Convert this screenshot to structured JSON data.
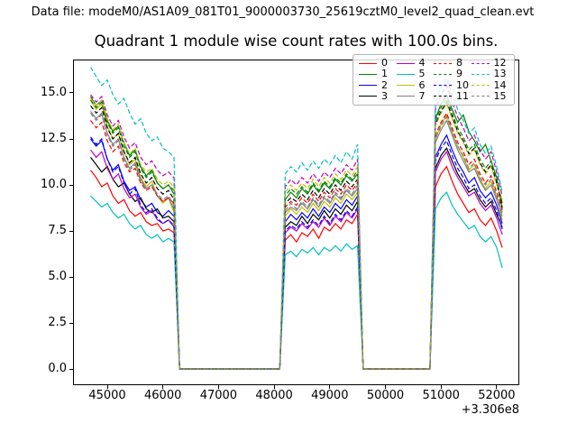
{
  "header": {
    "text": "Data file: modeM0/AS1A09_081T01_9000003730_25619cztM0_level2_quad_clean.evt"
  },
  "chart_data": {
    "type": "line",
    "title": "Quadrant 1 module wise count rates with 100.0s bins.",
    "xlabel": "",
    "ylabel": "",
    "bin_size_s": 100.0,
    "grid": false,
    "legend_position": "upper right",
    "axes": {
      "xlim": [
        44384,
        52407
      ],
      "ylim": [
        -0.88,
        16.81
      ],
      "x_offset_text": "+3.306e8",
      "x_ticks": {
        "values": [
          45000,
          46000,
          47000,
          48000,
          49000,
          50000,
          51000,
          52000
        ],
        "labels": [
          "45000",
          "46000",
          "47000",
          "48000",
          "49000",
          "50000",
          "51000",
          "52000"
        ]
      },
      "y_ticks": {
        "values": [
          0,
          2.5,
          5,
          7.5,
          10,
          12.5,
          15
        ],
        "labels": [
          "0.0",
          "2.5",
          "5.0",
          "7.5",
          "10.0",
          "12.5",
          "15.0"
        ]
      }
    },
    "x_seg1": [
      44700,
      44800,
      44900,
      45000,
      45100,
      45200,
      45300,
      45400,
      45500,
      45600,
      45700,
      45800,
      45900,
      46000,
      46100,
      46200
    ],
    "x_seg2": [
      48200,
      48300,
      48400,
      48500,
      48600,
      48700,
      48800,
      48900,
      49000,
      49100,
      49200,
      49300,
      49400,
      49500
    ],
    "x_seg3": [
      50900,
      51000,
      51100,
      51200,
      51300,
      51400,
      51500,
      51600,
      51700,
      51800,
      51900,
      52000,
      52100
    ],
    "gaps": [
      [
        46300,
        48100
      ],
      [
        49600,
        50800
      ]
    ],
    "gap_value": 0,
    "series": [
      {
        "name": "0",
        "color": "#ff0000",
        "linestyle": "solid",
        "seg1": [
          10.8,
          10.4,
          9.9,
          10.1,
          9.4,
          9.0,
          9.2,
          8.6,
          8.3,
          8.5,
          8.0,
          7.8,
          7.9,
          7.5,
          7.6,
          7.4
        ],
        "seg2": [
          7.0,
          7.3,
          6.9,
          7.4,
          7.2,
          7.6,
          7.1,
          7.7,
          7.5,
          7.9,
          7.6,
          8.1,
          7.9,
          8.4
        ],
        "seg3": [
          9.9,
          10.6,
          11.0,
          10.2,
          9.5,
          9.0,
          8.5,
          8.7,
          8.1,
          7.8,
          8.2,
          7.5,
          6.6
        ]
      },
      {
        "name": "1",
        "color": "#008000",
        "linestyle": "solid",
        "seg1": [
          14.8,
          14.3,
          14.6,
          13.5,
          12.9,
          13.2,
          12.3,
          11.6,
          11.9,
          11.0,
          10.5,
          10.8,
          10.1,
          9.8,
          10.0,
          9.5
        ],
        "seg2": [
          9.2,
          9.6,
          9.3,
          9.8,
          9.5,
          10.0,
          9.6,
          10.1,
          9.8,
          10.3,
          10.0,
          10.5,
          10.2,
          10.6
        ],
        "seg3": [
          13.6,
          14.4,
          14.9,
          14.1,
          13.4,
          13.8,
          12.9,
          12.4,
          11.8,
          12.2,
          11.3,
          10.4,
          8.7
        ]
      },
      {
        "name": "2",
        "color": "#0000ff",
        "linestyle": "solid",
        "seg1": [
          12.5,
          12.1,
          12.4,
          11.4,
          10.8,
          11.1,
          10.2,
          9.7,
          9.9,
          9.2,
          8.8,
          9.0,
          8.5,
          8.3,
          8.6,
          8.3
        ],
        "seg2": [
          8.0,
          8.4,
          8.1,
          8.5,
          8.2,
          8.7,
          8.3,
          8.8,
          8.5,
          9.0,
          8.7,
          9.2,
          8.9,
          9.4
        ],
        "seg3": [
          11.5,
          12.2,
          12.7,
          11.9,
          11.2,
          10.7,
          10.1,
          10.4,
          9.7,
          9.3,
          9.6,
          8.9,
          7.9
        ]
      },
      {
        "name": "3",
        "color": "#000000",
        "linestyle": "solid",
        "seg1": [
          11.5,
          11.1,
          10.7,
          11.0,
          10.3,
          9.9,
          10.1,
          9.5,
          9.1,
          9.3,
          8.7,
          8.5,
          8.7,
          8.2,
          8.3,
          8.0
        ],
        "seg2": [
          7.7,
          8.0,
          7.8,
          8.3,
          7.9,
          8.4,
          8.1,
          8.6,
          8.2,
          8.7,
          8.4,
          8.9,
          8.6,
          9.1
        ],
        "seg3": [
          10.9,
          11.6,
          12.0,
          11.3,
          10.6,
          10.1,
          9.6,
          9.8,
          9.2,
          8.8,
          9.1,
          8.4,
          7.7
        ]
      },
      {
        "name": "4",
        "color": "#bf00bf",
        "linestyle": "solid",
        "seg1": [
          11.9,
          11.5,
          11.8,
          10.9,
          10.3,
          10.6,
          9.8,
          9.3,
          9.5,
          8.8,
          8.4,
          8.6,
          8.1,
          7.9,
          8.1,
          7.7
        ],
        "seg2": [
          7.4,
          7.7,
          7.5,
          7.9,
          7.6,
          8.0,
          7.7,
          8.2,
          7.8,
          8.3,
          8.0,
          8.5,
          8.2,
          8.7
        ],
        "seg3": [
          10.7,
          11.4,
          11.8,
          11.0,
          10.4,
          9.9,
          9.4,
          9.6,
          9.0,
          8.6,
          8.9,
          8.2,
          7.3
        ]
      },
      {
        "name": "5",
        "color": "#00bfbf",
        "linestyle": "solid",
        "seg1": [
          9.4,
          9.1,
          8.8,
          9.0,
          8.5,
          8.2,
          8.4,
          7.9,
          7.6,
          7.8,
          7.3,
          7.1,
          7.3,
          6.9,
          7.1,
          6.9
        ],
        "seg2": [
          6.2,
          6.4,
          6.1,
          6.5,
          6.3,
          6.6,
          6.2,
          6.6,
          6.4,
          6.7,
          6.4,
          6.8,
          6.5,
          6.7
        ],
        "seg3": [
          8.7,
          9.3,
          9.6,
          8.9,
          8.4,
          8.0,
          7.6,
          7.8,
          7.2,
          6.9,
          7.2,
          6.6,
          5.5
        ]
      },
      {
        "name": "6",
        "color": "#bfbf00",
        "linestyle": "solid",
        "seg1": [
          14.6,
          14.1,
          14.4,
          13.2,
          12.5,
          12.8,
          11.8,
          11.1,
          11.4,
          10.4,
          9.9,
          10.2,
          9.4,
          9.0,
          9.3,
          8.5
        ],
        "seg2": [
          8.3,
          8.7,
          8.4,
          8.8,
          8.5,
          9.0,
          8.6,
          9.1,
          8.8,
          9.3,
          9.0,
          9.5,
          9.2,
          9.6
        ],
        "seg3": [
          12.5,
          13.3,
          13.8,
          12.9,
          12.1,
          11.5,
          10.8,
          11.1,
          10.3,
          9.8,
          10.2,
          9.3,
          8.1
        ]
      },
      {
        "name": "7",
        "color": "#7f7f7f",
        "linestyle": "solid",
        "seg1": [
          14.0,
          13.6,
          13.9,
          12.8,
          12.2,
          12.5,
          11.5,
          10.9,
          11.2,
          10.3,
          9.8,
          10.0,
          9.4,
          9.1,
          9.3,
          8.7
        ],
        "seg2": [
          8.5,
          8.8,
          8.6,
          9.0,
          8.7,
          9.2,
          8.8,
          9.3,
          9.0,
          9.5,
          9.2,
          9.7,
          9.4,
          9.8
        ],
        "seg3": [
          12.3,
          13.0,
          13.5,
          12.7,
          11.9,
          11.3,
          10.7,
          10.9,
          10.2,
          9.7,
          10.0,
          9.2,
          8.3
        ]
      },
      {
        "name": "8",
        "color": "#ff0000",
        "linestyle": "dashed",
        "seg1": [
          13.5,
          13.1,
          13.4,
          12.4,
          11.8,
          12.1,
          11.2,
          10.7,
          10.9,
          10.1,
          9.7,
          9.9,
          9.4,
          9.1,
          9.3,
          9.0
        ],
        "seg2": [
          8.8,
          9.1,
          8.9,
          9.3,
          9.0,
          9.5,
          9.1,
          9.6,
          9.3,
          9.8,
          9.5,
          10.0,
          9.7,
          10.1
        ],
        "seg3": [
          12.7,
          13.4,
          13.9,
          13.1,
          12.3,
          11.8,
          11.1,
          11.4,
          10.6,
          10.1,
          10.5,
          9.6,
          8.6
        ]
      },
      {
        "name": "9",
        "color": "#008000",
        "linestyle": "dashed",
        "seg1": [
          14.6,
          14.2,
          14.5,
          13.4,
          12.8,
          13.1,
          12.1,
          11.5,
          11.8,
          10.9,
          10.4,
          10.7,
          10.1,
          9.8,
          10.0,
          9.7
        ],
        "seg2": [
          9.4,
          9.8,
          9.5,
          9.9,
          9.6,
          10.1,
          9.7,
          10.2,
          9.9,
          10.4,
          10.1,
          10.6,
          10.3,
          10.8
        ],
        "seg3": [
          13.5,
          14.2,
          14.7,
          13.9,
          13.1,
          12.6,
          11.9,
          12.2,
          11.4,
          10.9,
          11.3,
          10.3,
          9.0
        ]
      },
      {
        "name": "10",
        "color": "#0000ff",
        "linestyle": "dashed",
        "seg1": [
          12.6,
          12.2,
          12.5,
          11.4,
          10.7,
          11.0,
          10.1,
          9.5,
          9.8,
          8.9,
          8.5,
          8.7,
          8.2,
          7.9,
          8.1,
          7.8
        ],
        "seg2": [
          7.5,
          7.8,
          7.6,
          8.0,
          7.7,
          8.1,
          7.8,
          8.3,
          7.9,
          8.4,
          8.1,
          8.6,
          8.3,
          8.8
        ],
        "seg3": [
          11.3,
          12.0,
          12.4,
          11.6,
          10.9,
          10.4,
          9.8,
          10.0,
          9.4,
          9.0,
          9.3,
          8.6,
          7.6
        ]
      },
      {
        "name": "11",
        "color": "#000000",
        "linestyle": "dashed",
        "seg1": [
          14.3,
          13.9,
          14.2,
          13.1,
          12.5,
          12.8,
          11.8,
          11.2,
          11.5,
          10.6,
          10.1,
          10.4,
          9.8,
          9.5,
          9.7,
          9.2
        ],
        "seg2": [
          9.0,
          9.3,
          9.1,
          9.5,
          9.2,
          9.7,
          9.3,
          9.8,
          9.5,
          10.0,
          9.7,
          10.2,
          9.9,
          10.3
        ],
        "seg3": [
          13.3,
          14.0,
          14.5,
          13.7,
          12.9,
          12.4,
          11.7,
          12.0,
          11.2,
          10.7,
          11.1,
          10.1,
          8.8
        ]
      },
      {
        "name": "12",
        "color": "#bf00bf",
        "linestyle": "dashed",
        "seg1": [
          14.9,
          14.5,
          14.8,
          13.8,
          13.2,
          13.5,
          12.6,
          12.0,
          12.3,
          11.5,
          11.1,
          11.3,
          10.8,
          10.5,
          10.7,
          10.4
        ],
        "seg2": [
          9.9,
          10.3,
          10.0,
          10.4,
          10.1,
          10.6,
          10.2,
          10.7,
          10.4,
          10.9,
          10.6,
          11.1,
          10.8,
          11.4
        ],
        "seg3": [
          14.1,
          14.9,
          15.4,
          14.5,
          13.7,
          13.1,
          12.4,
          12.7,
          11.9,
          11.4,
          11.8,
          10.7,
          9.4
        ]
      },
      {
        "name": "13",
        "color": "#00bfbf",
        "linestyle": "dashed",
        "seg1": [
          16.4,
          15.9,
          15.4,
          15.7,
          14.9,
          14.4,
          14.7,
          13.9,
          13.3,
          13.6,
          12.8,
          12.4,
          12.6,
          12.0,
          11.8,
          11.5
        ],
        "seg2": [
          10.6,
          11.0,
          10.7,
          11.2,
          10.8,
          11.3,
          10.9,
          11.4,
          11.1,
          11.6,
          11.2,
          11.8,
          11.4,
          12.2
        ],
        "seg3": [
          14.5,
          15.3,
          15.8,
          14.9,
          14.1,
          13.5,
          12.8,
          13.1,
          12.2,
          11.7,
          12.1,
          11.0,
          9.6
        ]
      },
      {
        "name": "14",
        "color": "#bfbf00",
        "linestyle": "dashed",
        "seg1": [
          14.7,
          14.3,
          14.6,
          13.6,
          13.0,
          13.3,
          12.3,
          11.7,
          12.0,
          11.1,
          10.7,
          10.9,
          10.3,
          10.0,
          10.2,
          9.9
        ],
        "seg2": [
          9.6,
          10.0,
          9.7,
          10.1,
          9.8,
          10.3,
          9.9,
          10.4,
          10.1,
          10.6,
          10.3,
          10.8,
          10.5,
          11.0
        ],
        "seg3": [
          13.2,
          13.9,
          14.4,
          13.6,
          12.8,
          12.3,
          11.6,
          11.9,
          11.1,
          10.6,
          11.0,
          10.0,
          9.2
        ]
      },
      {
        "name": "15",
        "color": "#7f7f7f",
        "linestyle": "dashed",
        "seg1": [
          13.9,
          13.5,
          13.8,
          12.7,
          12.1,
          12.4,
          11.4,
          10.8,
          11.1,
          10.2,
          9.8,
          10.0,
          9.5,
          9.2,
          9.4,
          8.9
        ],
        "seg2": [
          8.6,
          9.0,
          8.7,
          9.1,
          8.8,
          9.3,
          8.9,
          9.4,
          9.1,
          9.6,
          9.3,
          9.8,
          9.5,
          10.0
        ],
        "seg3": [
          12.5,
          13.2,
          13.7,
          12.9,
          12.1,
          11.6,
          10.9,
          11.2,
          10.4,
          10.0,
          10.3,
          9.4,
          8.5
        ]
      }
    ]
  }
}
